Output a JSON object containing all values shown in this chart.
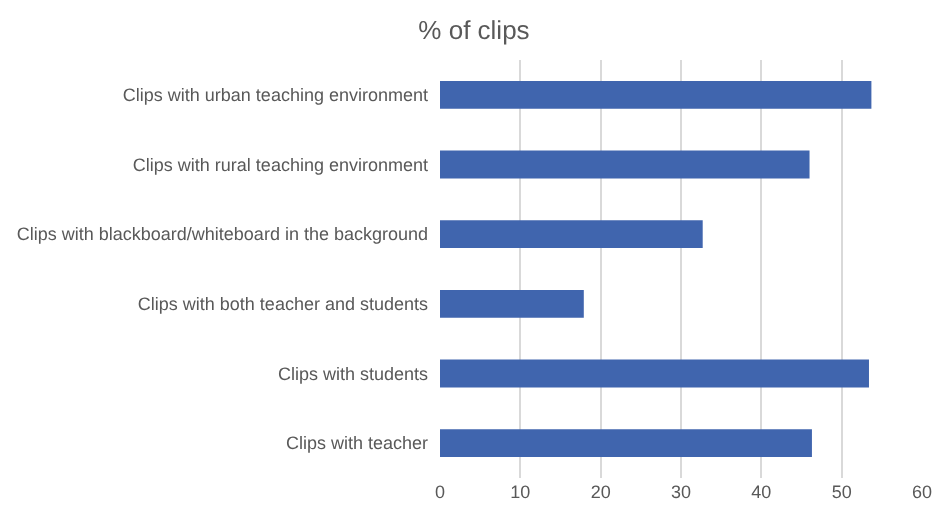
{
  "chart_data": {
    "type": "bar",
    "orientation": "horizontal",
    "title": "% of clips",
    "categories": [
      "Clips with urban teaching environment",
      "Clips with rural teaching environment",
      "Clips with blackboard/whiteboard in the background",
      "Clips with both teacher and students",
      "Clips with students",
      "Clips with teacher"
    ],
    "values": [
      53.7,
      46.0,
      32.7,
      17.9,
      53.4,
      46.3
    ],
    "color": "#4065ae",
    "xlim": [
      0,
      60
    ],
    "xticks": [
      0,
      10,
      20,
      30,
      40,
      50,
      60
    ],
    "grid": "x"
  }
}
